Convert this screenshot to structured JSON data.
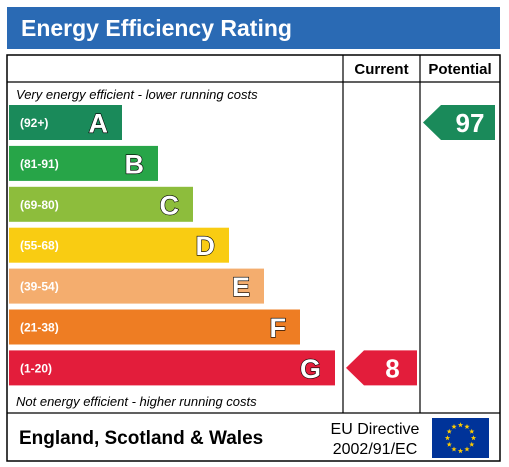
{
  "title": "Energy Efficiency Rating",
  "headers": {
    "current": "Current",
    "potential": "Potential"
  },
  "top_note": "Very energy efficient - lower running costs",
  "bottom_note": "Not energy efficient - higher running costs",
  "footer": {
    "region": "England, Scotland & Wales",
    "directive_line1": "EU Directive",
    "directive_line2": "2002/91/EC"
  },
  "chart_data": {
    "type": "bar",
    "categories": [
      "A",
      "B",
      "C",
      "D",
      "E",
      "F",
      "G"
    ],
    "ranges": [
      "(92+)",
      "(81-91)",
      "(69-80)",
      "(55-68)",
      "(39-54)",
      "(21-38)",
      "(1-20)"
    ],
    "colors": [
      "#1a8a5a",
      "#27a548",
      "#8dbd3c",
      "#f9cc12",
      "#f4ad6e",
      "#ee7d23",
      "#e31d3b"
    ],
    "current": {
      "value": 8,
      "band": "G",
      "color": "#e31d3b"
    },
    "potential": {
      "value": 97,
      "band": "A",
      "color": "#1a8a5a"
    }
  }
}
